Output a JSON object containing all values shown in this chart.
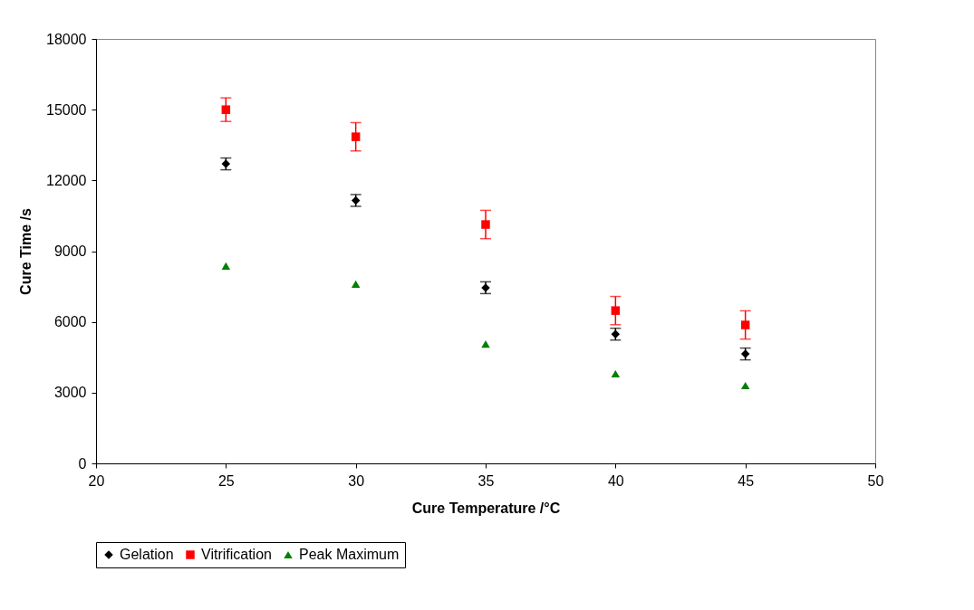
{
  "chart_data": {
    "type": "scatter",
    "xlabel": "Cure Temperature /°C",
    "ylabel": "Cure Time /s",
    "x": [
      25,
      30,
      35,
      40,
      45
    ],
    "series": [
      {
        "name": "Gelation",
        "color": "#000000",
        "marker": "diamond",
        "values": [
          12700,
          11150,
          7450,
          5480,
          4640
        ],
        "errors": [
          250,
          250,
          250,
          250,
          250
        ]
      },
      {
        "name": "Vitrification",
        "color": "#ff0000",
        "marker": "square",
        "values": [
          15000,
          13850,
          10130,
          6480,
          5870
        ],
        "errors": [
          500,
          600,
          600,
          600,
          600
        ]
      },
      {
        "name": "Peak Maximum",
        "color": "#008000",
        "marker": "triangle",
        "values": [
          8370,
          7600,
          5060,
          3800,
          3300
        ]
      }
    ],
    "xlim": [
      20,
      50
    ],
    "xticks": [
      20,
      25,
      30,
      35,
      40,
      45,
      50
    ],
    "ylim": [
      0,
      18000
    ],
    "yticks": [
      0,
      3000,
      6000,
      9000,
      12000,
      15000,
      18000
    ],
    "grid": false,
    "legend": "bottom"
  }
}
